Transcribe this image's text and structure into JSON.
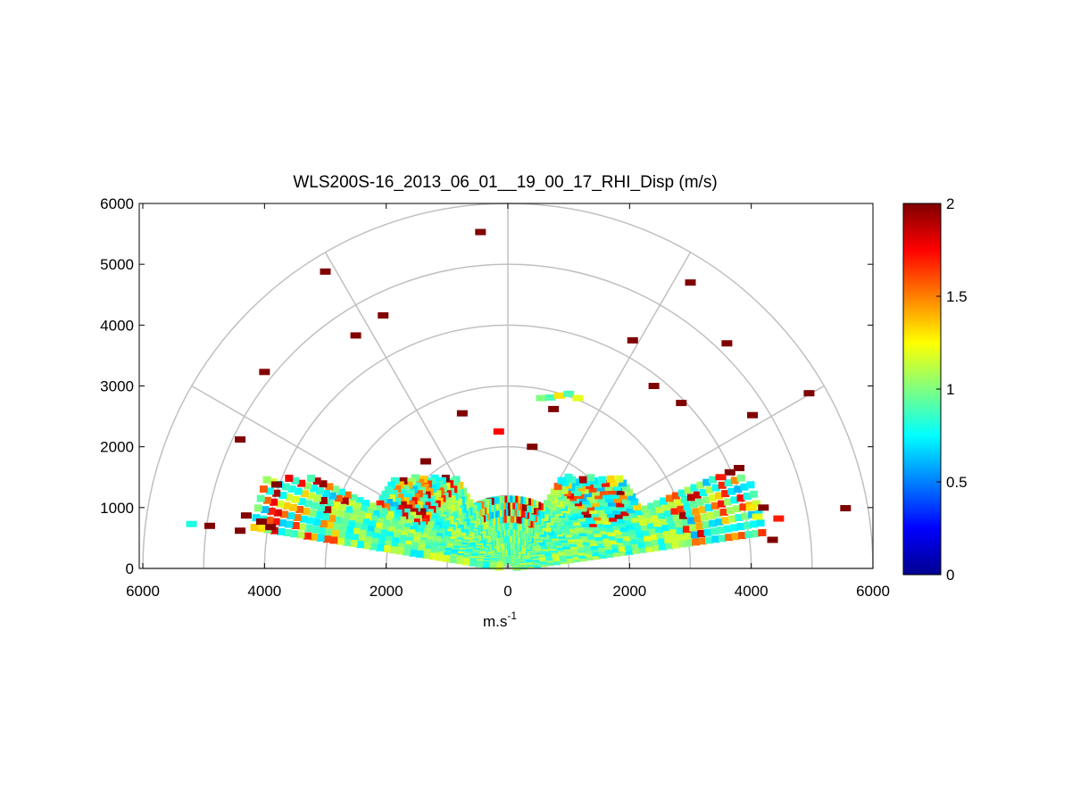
{
  "chart_data": {
    "type": "heatmap",
    "subtype": "polar-rhi",
    "title": "WLS200S-16_2013_06_01__19_00_17_RHI_Disp (m/s)",
    "xlabel_base": "m.s",
    "xlabel_sup": "-1",
    "ylabel": "",
    "xlim": [
      -6000,
      6000
    ],
    "ylim": [
      0,
      6000
    ],
    "x_ticks": [
      -6000,
      -4000,
      -2000,
      0,
      2000,
      4000,
      6000
    ],
    "x_tick_labels": [
      "6000",
      "4000",
      "2000",
      "0",
      "2000",
      "4000",
      "6000"
    ],
    "y_ticks": [
      0,
      1000,
      2000,
      3000,
      4000,
      5000,
      6000
    ],
    "y_tick_labels": [
      "0",
      "1000",
      "2000",
      "3000",
      "4000",
      "5000",
      "6000"
    ],
    "polar_rings": [
      1000,
      2000,
      3000,
      4000,
      5000,
      6000
    ],
    "polar_spokes_deg": [
      0,
      30,
      60,
      90,
      120,
      150,
      180
    ],
    "colorbar": {
      "colormap": "jet",
      "min": 0,
      "max": 2,
      "ticks": [
        0,
        0.5,
        1,
        1.5,
        2
      ],
      "tick_labels": [
        "0",
        "0.5",
        "1",
        "1.5",
        "2"
      ]
    },
    "grid": true,
    "points": [
      {
        "x": -450,
        "y": 5530,
        "v": 2.0
      },
      {
        "x": -3000,
        "y": 4880,
        "v": 2.0
      },
      {
        "x": -2050,
        "y": 4160,
        "v": 2.0
      },
      {
        "x": -2500,
        "y": 3830,
        "v": 2.0
      },
      {
        "x": -4000,
        "y": 3230,
        "v": 2.0
      },
      {
        "x": 2050,
        "y": 3750,
        "v": 2.0
      },
      {
        "x": 3000,
        "y": 4700,
        "v": 2.0
      },
      {
        "x": 3600,
        "y": 3700,
        "v": 2.0
      },
      {
        "x": 2400,
        "y": 3000,
        "v": 2.0
      },
      {
        "x": 2850,
        "y": 2720,
        "v": 2.0
      },
      {
        "x": 4020,
        "y": 2520,
        "v": 2.0
      },
      {
        "x": 4950,
        "y": 2880,
        "v": 2.0
      },
      {
        "x": 5550,
        "y": 990,
        "v": 2.0
      },
      {
        "x": -4400,
        "y": 2120,
        "v": 2.0
      },
      {
        "x": -3800,
        "y": 1380,
        "v": 2.0
      },
      {
        "x": -4300,
        "y": 870,
        "v": 2.0
      },
      {
        "x": -4400,
        "y": 620,
        "v": 2.0
      },
      {
        "x": -4900,
        "y": 700,
        "v": 2.0
      },
      {
        "x": -5200,
        "y": 730,
        "v": 0.8
      },
      {
        "x": -4050,
        "y": 770,
        "v": 2.0
      },
      {
        "x": -3900,
        "y": 680,
        "v": 2.0
      },
      {
        "x": -1350,
        "y": 1760,
        "v": 2.0
      },
      {
        "x": -750,
        "y": 2550,
        "v": 2.0
      },
      {
        "x": -150,
        "y": 2250,
        "v": 1.75
      },
      {
        "x": 550,
        "y": 2800,
        "v": 1.0
      },
      {
        "x": 700,
        "y": 2810,
        "v": 0.9
      },
      {
        "x": 850,
        "y": 2840,
        "v": 1.3
      },
      {
        "x": 1000,
        "y": 2870,
        "v": 0.9
      },
      {
        "x": 1150,
        "y": 2800,
        "v": 1.2
      },
      {
        "x": 750,
        "y": 2620,
        "v": 2.0
      },
      {
        "x": 400,
        "y": 2000,
        "v": 2.0
      },
      {
        "x": 4450,
        "y": 820,
        "v": 1.7
      },
      {
        "x": 4350,
        "y": 470,
        "v": 2.0
      },
      {
        "x": 4000,
        "y": 1000,
        "v": 1.3
      },
      {
        "x": 4100,
        "y": 850,
        "v": 1.2
      },
      {
        "x": 3800,
        "y": 1650,
        "v": 2.0
      },
      {
        "x": 3650,
        "y": 1580,
        "v": 2.0
      },
      {
        "x": 3500,
        "y": 1500,
        "v": 1.7
      },
      {
        "x": 4200,
        "y": 1000,
        "v": 2.0
      }
    ]
  }
}
